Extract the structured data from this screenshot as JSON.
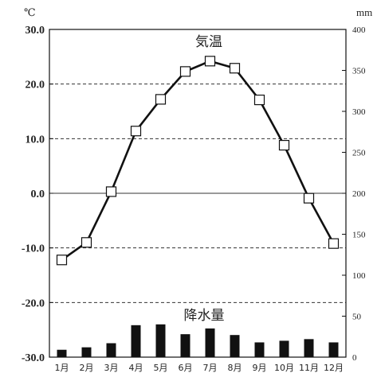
{
  "chart_data": {
    "type": "line+bar",
    "categories": [
      "1月",
      "2月",
      "3月",
      "4月",
      "5月",
      "6月",
      "7月",
      "8月",
      "9月",
      "10月",
      "11月",
      "12月"
    ],
    "series": [
      {
        "name": "気温",
        "type": "line",
        "axis": "left",
        "values": [
          -12.2,
          -9.0,
          0.3,
          11.4,
          17.2,
          22.3,
          24.2,
          22.9,
          17.1,
          8.8,
          -0.9,
          -9.2
        ]
      },
      {
        "name": "降水量",
        "type": "bar",
        "axis": "right",
        "values": [
          9,
          12,
          17,
          39,
          40,
          28,
          35,
          27,
          18,
          20,
          22,
          18
        ]
      }
    ],
    "left_axis": {
      "unit": "℃",
      "range": [
        -30,
        30
      ],
      "ticks": [
        "30.0",
        "20.0",
        "10.0",
        "0.0",
        "-10.0",
        "-20.0",
        "-30.0"
      ],
      "tick_values": [
        30,
        20,
        10,
        0,
        -10,
        -20,
        -30
      ]
    },
    "right_axis": {
      "unit": "mm",
      "range": [
        0,
        400
      ],
      "ticks": [
        "400",
        "350",
        "300",
        "250",
        "200",
        "150",
        "100",
        "50",
        "0"
      ],
      "tick_values": [
        400,
        350,
        300,
        250,
        200,
        150,
        100,
        50,
        0
      ]
    },
    "gridlines": "dashed at 20, 10, -10, -20; solid at 0",
    "line_color": "#111111",
    "bar_color": "#111111",
    "marker": "open-square"
  }
}
